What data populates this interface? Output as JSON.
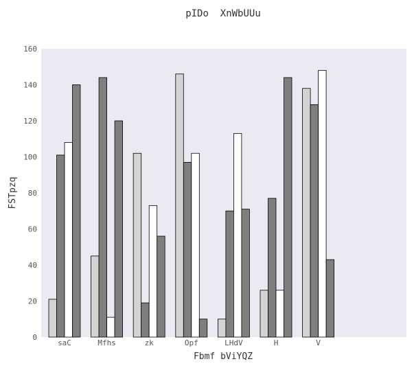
{
  "chart_data": {
    "type": "bar",
    "title": "pIDo  XnWbUUu",
    "xlabel": "Fbmf bViYQZ",
    "ylabel": "FSTpzq",
    "categories": [
      "saC",
      "Mfhs",
      "zk",
      "Opf",
      "LHdV",
      "H",
      "V"
    ],
    "series": [
      {
        "values": [
          21,
          45,
          102,
          146,
          10,
          26,
          138
        ],
        "color": "#d3d3d3"
      },
      {
        "values": [
          101,
          144,
          19,
          97,
          70,
          77,
          129
        ],
        "color": "#7f7f7f"
      },
      {
        "values": [
          108,
          11,
          73,
          102,
          113,
          26,
          148
        ],
        "color": "#ffffff"
      },
      {
        "values": [
          140,
          120,
          56,
          10,
          71,
          144,
          43
        ],
        "color": "#7f7f7f"
      }
    ],
    "ylim": [
      0,
      160
    ],
    "yticks": [
      0,
      20,
      40,
      60,
      80,
      100,
      120,
      140,
      160
    ],
    "grid": false,
    "legend": "none",
    "colors": {
      "plot_background": "#eaeaf2",
      "bar_edge": "#000000",
      "text": "#555555"
    }
  }
}
